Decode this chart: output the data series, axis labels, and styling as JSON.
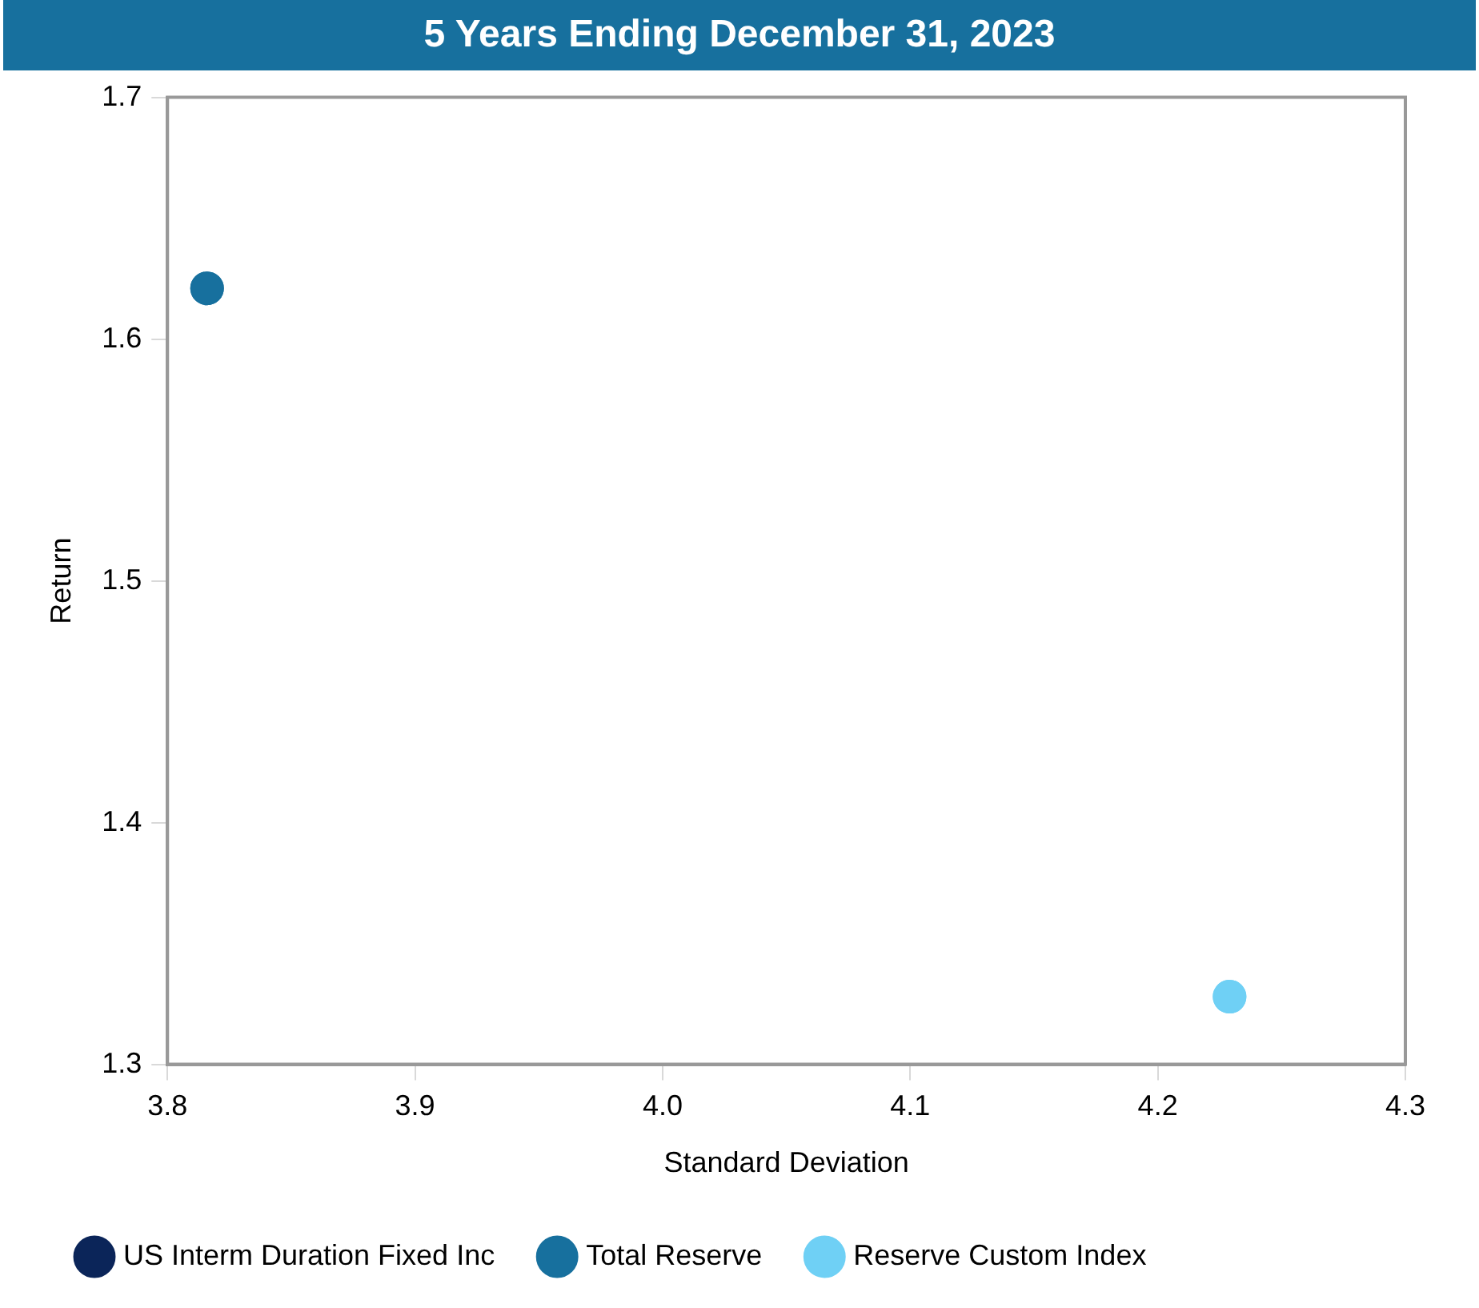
{
  "chart_data": {
    "type": "scatter",
    "title": "5 Years Ending December 31, 2023",
    "xlabel": "Standard Deviation",
    "ylabel": "Return",
    "xlim": [
      3.8,
      4.3
    ],
    "xticks": [
      {
        "value": 3.8,
        "label": "3.8"
      },
      {
        "value": 3.9,
        "label": "3.9"
      },
      {
        "value": 4.0,
        "label": "4.0"
      },
      {
        "value": 4.1,
        "label": "4.1"
      },
      {
        "value": 4.2,
        "label": "4.2"
      },
      {
        "value": 4.3,
        "label": "4.3"
      }
    ],
    "ylim": [
      1.3,
      1.7
    ],
    "yticks": [
      {
        "value": 1.3,
        "label": "1.3"
      },
      {
        "value": 1.4,
        "label": "1.4"
      },
      {
        "value": 1.5,
        "label": "1.5"
      },
      {
        "value": 1.6,
        "label": "1.6"
      },
      {
        "value": 1.7,
        "label": "1.7"
      }
    ],
    "grid": false,
    "legend": "bottom",
    "marker": "circle",
    "series": [
      {
        "name": "US Interm Duration Fixed Inc",
        "color": "#0b2559",
        "x": [
          null
        ],
        "values": [
          null
        ]
      },
      {
        "name": "Total Reserve",
        "color": "#17709e",
        "x": [
          3.816
        ],
        "values": [
          1.621
        ]
      },
      {
        "name": "Reserve Custom Index",
        "color": "#6fd0f5",
        "x": [
          4.229
        ],
        "values": [
          1.328
        ]
      }
    ]
  }
}
